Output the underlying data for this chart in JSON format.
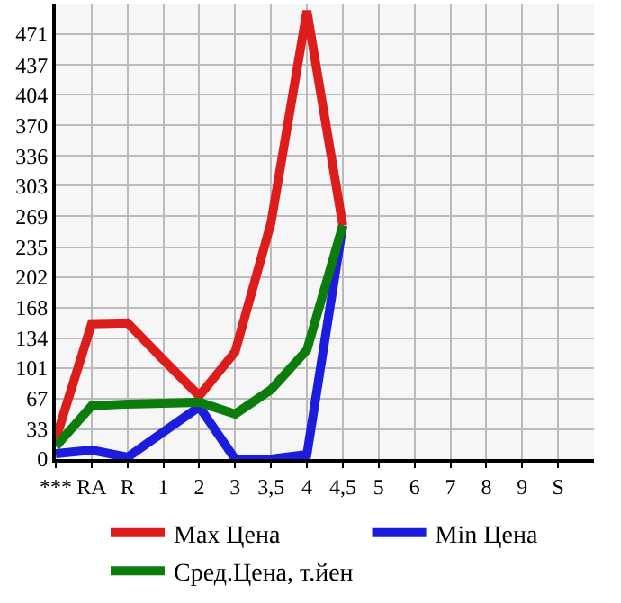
{
  "chart_data": {
    "type": "line",
    "categories": [
      "***",
      "RA",
      "R",
      "1",
      "2",
      "3",
      "3,5",
      "4",
      "4,5",
      "5",
      "6",
      "7",
      "8",
      "9",
      "S"
    ],
    "series": [
      {
        "name": "Max Цена",
        "color": "#dd1c1c",
        "values": [
          22,
          150,
          151,
          110,
          70,
          119,
          262,
          497,
          259,
          null,
          null,
          null,
          null,
          null,
          null
        ]
      },
      {
        "name": "Min Цена",
        "color": "#1c1cdd",
        "values": [
          6,
          10,
          2,
          30,
          58,
          0,
          0,
          5,
          259,
          null,
          null,
          null,
          null,
          null,
          null
        ]
      },
      {
        "name": "Сред.Цена, т.йен",
        "color": "#0c7c0c",
        "values": [
          14,
          59,
          61,
          62,
          63,
          50,
          77,
          121,
          259,
          null,
          null,
          null,
          null,
          null,
          null
        ]
      }
    ],
    "ylim": [
      0,
      505
    ],
    "yticks": [
      0,
      33,
      67,
      101,
      134,
      168,
      202,
      235,
      269,
      303,
      336,
      370,
      404,
      437,
      471
    ],
    "grid": true,
    "legend": "bottom",
    "line_style": "solid",
    "marker": "none"
  }
}
